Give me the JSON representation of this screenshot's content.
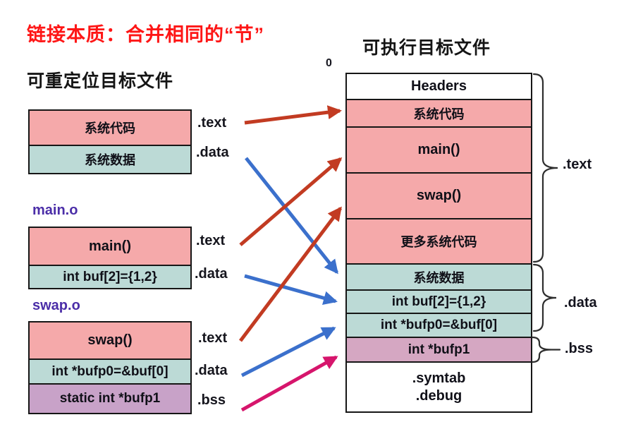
{
  "slide": {
    "title": "链接本质：合并相同的“节”"
  },
  "left_panel": {
    "heading": "可重定位目标文件",
    "system_box": {
      "rows": [
        "系统代码",
        "系统数据"
      ],
      "section_labels": [
        ".text",
        ".data"
      ]
    },
    "main_module": {
      "name": "main.o",
      "rows": [
        "main()",
        "int  buf[2]={1,2}"
      ],
      "section_labels": [
        ".text",
        ".data"
      ]
    },
    "swap_module": {
      "name": "swap.o",
      "rows": [
        "swap()",
        "int *bufp0=&buf[0]",
        "static int *bufp1"
      ],
      "section_labels": [
        ".text",
        ".data",
        ".bss"
      ]
    }
  },
  "right_panel": {
    "heading": "可执行目标文件",
    "origin_label": "0",
    "rows": [
      "Headers",
      "系统代码",
      "main()",
      "swap()",
      "更多系统代码",
      "系统数据",
      "int buf[2]={1,2}",
      "int *bufp0=&buf[0]",
      "int *bufp1"
    ],
    "footer_lines": [
      ".symtab",
      ".debug"
    ],
    "brace_labels": [
      ".text",
      ".data",
      ".bss"
    ]
  },
  "colors": {
    "title_red": "#fe1616",
    "module_name_purple": "#4b2ea8",
    "box_pink": "#f5a9aa",
    "box_teal": "#bcdad6",
    "box_mauve_left": "#c8a2c8",
    "box_mauve_right": "#d5a7c2",
    "arrow_text_red": "#c23b22",
    "arrow_data_blue": "#3b70cc",
    "arrow_bss_magenta": "#d6156c",
    "brace_gray": "#2e2e2e"
  }
}
